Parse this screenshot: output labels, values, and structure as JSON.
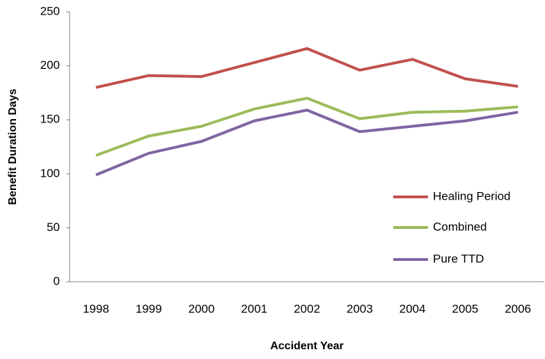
{
  "chart_data": {
    "type": "line",
    "x_label": "Accident Year",
    "y_label": "Benefit Duration Days",
    "categories": [
      "1998",
      "1999",
      "2000",
      "2001",
      "2002",
      "2003",
      "2004",
      "2005",
      "2006"
    ],
    "series": [
      {
        "name": "Healing Period",
        "color": "#c0504d",
        "values": [
          180,
          191,
          190,
          203,
          216,
          196,
          206,
          188,
          181
        ]
      },
      {
        "name": "Combined",
        "color": "#9bbb59",
        "values": [
          117,
          135,
          144,
          160,
          170,
          151,
          157,
          158,
          162
        ]
      },
      {
        "name": "Pure TTD",
        "color": "#8064a2",
        "values": [
          99,
          119,
          130,
          149,
          159,
          139,
          144,
          149,
          157
        ]
      }
    ],
    "ylim": [
      0,
      250
    ],
    "yticks": [
      0,
      50,
      100,
      150,
      200,
      250
    ],
    "grid": false,
    "legend": "right"
  }
}
